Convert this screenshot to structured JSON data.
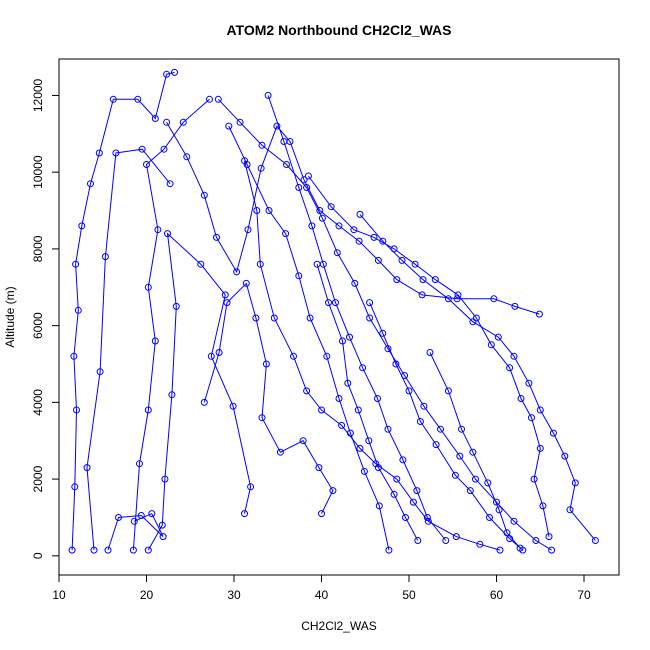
{
  "chart_data": {
    "type": "line",
    "title": "ATOM2 Northbound CH2Cl2_WAS",
    "xlabel": "CH2Cl2_WAS",
    "ylabel": "Altitude (m)",
    "xlim": [
      10,
      74
    ],
    "ylim": [
      -500,
      12950
    ],
    "x_ticks": [
      10,
      20,
      30,
      40,
      50,
      60,
      70
    ],
    "y_ticks": [
      0,
      2000,
      4000,
      6000,
      8000,
      10000,
      12000
    ],
    "grid": false,
    "markers": "open-circle",
    "series_color": "#0000ff",
    "series": [
      {
        "profile": "A",
        "points": [
          [
            11.5,
            150
          ],
          [
            11.8,
            1800
          ],
          [
            12.0,
            3800
          ],
          [
            11.7,
            5200
          ],
          [
            12.2,
            6400
          ],
          [
            11.9,
            7600
          ],
          [
            12.6,
            8600
          ],
          [
            13.6,
            9700
          ],
          [
            14.6,
            10500
          ],
          [
            16.2,
            11900
          ],
          [
            19.0,
            11900
          ],
          [
            21.0,
            11400
          ],
          [
            22.3,
            12550
          ],
          [
            23.2,
            12600
          ]
        ]
      },
      {
        "profile": "B",
        "points": [
          [
            15.6,
            150
          ],
          [
            16.8,
            1000
          ],
          [
            19.4,
            1050
          ],
          [
            21.9,
            500
          ],
          [
            20.6,
            1100
          ],
          [
            18.6,
            900
          ]
        ]
      },
      {
        "profile": "C",
        "points": [
          [
            18.5,
            150
          ],
          [
            19.2,
            2400
          ],
          [
            20.2,
            3800
          ],
          [
            21.0,
            5600
          ],
          [
            20.2,
            7000
          ],
          [
            21.3,
            8500
          ],
          [
            20.0,
            10200
          ],
          [
            22.0,
            10600
          ],
          [
            24.2,
            11300
          ],
          [
            27.2,
            11900
          ]
        ]
      },
      {
        "profile": "D",
        "points": [
          [
            14.0,
            150
          ],
          [
            13.2,
            2300
          ],
          [
            14.7,
            4800
          ],
          [
            15.3,
            7800
          ],
          [
            16.5,
            10500
          ],
          [
            19.5,
            10600
          ],
          [
            22.7,
            9700
          ]
        ]
      },
      {
        "profile": "E",
        "points": [
          [
            20.2,
            150
          ],
          [
            21.8,
            800
          ],
          [
            22.1,
            2000
          ],
          [
            22.9,
            4200
          ],
          [
            23.4,
            6500
          ],
          [
            22.4,
            8400
          ],
          [
            26.2,
            7600
          ],
          [
            29.0,
            6800
          ],
          [
            27.4,
            5200
          ],
          [
            29.9,
            3900
          ],
          [
            31.9,
            1800
          ],
          [
            31.2,
            1100
          ]
        ]
      },
      {
        "profile": "F",
        "points": [
          [
            22.3,
            11300
          ],
          [
            24.6,
            10400
          ],
          [
            26.6,
            9400
          ],
          [
            28.0,
            8300
          ],
          [
            30.3,
            7400
          ],
          [
            31.6,
            8500
          ],
          [
            33.1,
            10100
          ],
          [
            34.9,
            11200
          ],
          [
            36.4,
            10800
          ],
          [
            38.0,
            9800
          ],
          [
            39.8,
            9000
          ],
          [
            42.0,
            8600
          ],
          [
            44.3,
            8200
          ],
          [
            46.5,
            7700
          ],
          [
            48.6,
            7200
          ],
          [
            51.5,
            6800
          ],
          [
            55.5,
            6700
          ],
          [
            59.7,
            6700
          ],
          [
            62.1,
            6500
          ],
          [
            64.9,
            6300
          ]
        ]
      },
      {
        "profile": "G",
        "points": [
          [
            26.6,
            4000
          ],
          [
            28.3,
            5300
          ],
          [
            29.2,
            6600
          ],
          [
            31.4,
            7100
          ],
          [
            32.5,
            6200
          ],
          [
            33.7,
            5000
          ],
          [
            33.2,
            3600
          ],
          [
            35.3,
            2700
          ],
          [
            37.9,
            3000
          ],
          [
            39.7,
            2300
          ],
          [
            41.3,
            1700
          ],
          [
            40.0,
            1100
          ]
        ]
      },
      {
        "profile": "H",
        "points": [
          [
            31.2,
            10300
          ],
          [
            32.6,
            9000
          ],
          [
            33.0,
            7600
          ],
          [
            34.6,
            6200
          ],
          [
            36.8,
            5200
          ],
          [
            38.3,
            4300
          ],
          [
            40.0,
            3800
          ],
          [
            42.3,
            3400
          ],
          [
            44.4,
            2800
          ],
          [
            46.2,
            2400
          ],
          [
            48.6,
            2000
          ],
          [
            50.5,
            1400
          ],
          [
            52.2,
            900
          ],
          [
            55.4,
            500
          ],
          [
            58.1,
            300
          ],
          [
            60.4,
            150
          ]
        ]
      },
      {
        "profile": "I",
        "points": [
          [
            29.4,
            11200
          ],
          [
            31.5,
            10200
          ],
          [
            34.0,
            9000
          ],
          [
            35.9,
            8400
          ],
          [
            37.4,
            7300
          ],
          [
            38.7,
            6200
          ],
          [
            40.6,
            5200
          ],
          [
            42.0,
            4100
          ],
          [
            43.3,
            3200
          ],
          [
            44.9,
            2200
          ],
          [
            46.6,
            1300
          ],
          [
            47.7,
            150
          ]
        ]
      },
      {
        "profile": "J",
        "points": [
          [
            28.2,
            11900
          ],
          [
            30.7,
            11300
          ],
          [
            33.2,
            10700
          ],
          [
            36.0,
            10200
          ],
          [
            38.3,
            9600
          ],
          [
            40.1,
            8800
          ],
          [
            41.8,
            7900
          ],
          [
            43.8,
            7100
          ],
          [
            45.5,
            6200
          ],
          [
            47.6,
            5400
          ],
          [
            49.5,
            4700
          ],
          [
            51.7,
            3900
          ],
          [
            53.6,
            3300
          ],
          [
            55.8,
            2600
          ],
          [
            57.6,
            2000
          ],
          [
            60.0,
            1400
          ],
          [
            62.0,
            900
          ],
          [
            64.5,
            400
          ],
          [
            66.3,
            150
          ]
        ]
      },
      {
        "profile": "K",
        "points": [
          [
            33.9,
            12000
          ],
          [
            35.7,
            10800
          ],
          [
            37.4,
            9600
          ],
          [
            38.9,
            8600
          ],
          [
            40.2,
            7600
          ],
          [
            41.6,
            6600
          ],
          [
            43.2,
            5700
          ],
          [
            44.7,
            4900
          ],
          [
            46.4,
            4100
          ],
          [
            47.6,
            3300
          ],
          [
            49.3,
            2500
          ],
          [
            50.9,
            1700
          ],
          [
            52.1,
            1000
          ],
          [
            54.2,
            400
          ]
        ]
      },
      {
        "profile": "L",
        "points": [
          [
            38.5,
            9900
          ],
          [
            41.1,
            9100
          ],
          [
            43.7,
            8500
          ],
          [
            46.0,
            8300
          ],
          [
            48.3,
            8000
          ],
          [
            50.7,
            7600
          ],
          [
            53.0,
            7200
          ],
          [
            55.6,
            6800
          ],
          [
            57.7,
            6200
          ],
          [
            59.4,
            5500
          ],
          [
            61.5,
            4900
          ],
          [
            62.8,
            4100
          ],
          [
            64.0,
            3600
          ],
          [
            65.0,
            2800
          ],
          [
            64.3,
            2000
          ],
          [
            65.3,
            1300
          ],
          [
            66.0,
            500
          ]
        ]
      },
      {
        "profile": "M",
        "points": [
          [
            44.4,
            8900
          ],
          [
            47.0,
            8200
          ],
          [
            49.2,
            7700
          ],
          [
            51.6,
            7200
          ],
          [
            54.5,
            6700
          ],
          [
            57.3,
            6100
          ],
          [
            60.2,
            5700
          ],
          [
            62.0,
            5200
          ],
          [
            63.7,
            4500
          ],
          [
            65.0,
            3800
          ],
          [
            66.5,
            3200
          ],
          [
            67.8,
            2600
          ],
          [
            69.0,
            1900
          ],
          [
            68.4,
            1200
          ],
          [
            71.3,
            400
          ]
        ]
      },
      {
        "profile": "N",
        "points": [
          [
            45.5,
            6600
          ],
          [
            47.0,
            5800
          ],
          [
            48.5,
            5000
          ],
          [
            50.0,
            4300
          ],
          [
            51.3,
            3500
          ],
          [
            53.1,
            2900
          ],
          [
            55.3,
            2100
          ],
          [
            57.0,
            1700
          ],
          [
            59.2,
            1000
          ],
          [
            61.5,
            450
          ],
          [
            63.0,
            150
          ]
        ]
      },
      {
        "profile": "O",
        "points": [
          [
            52.4,
            5300
          ],
          [
            54.5,
            4300
          ],
          [
            56.0,
            3300
          ],
          [
            57.3,
            2700
          ],
          [
            59.0,
            1900
          ],
          [
            60.3,
            1200
          ],
          [
            61.2,
            600
          ],
          [
            62.7,
            200
          ]
        ]
      },
      {
        "profile": "P",
        "points": [
          [
            39.5,
            7600
          ],
          [
            40.8,
            6600
          ],
          [
            42.4,
            5600
          ],
          [
            43.0,
            4500
          ],
          [
            44.2,
            3800
          ],
          [
            45.4,
            3000
          ],
          [
            46.5,
            2300
          ],
          [
            48.3,
            1600
          ],
          [
            49.6,
            1000
          ],
          [
            51.0,
            400
          ]
        ]
      }
    ]
  }
}
